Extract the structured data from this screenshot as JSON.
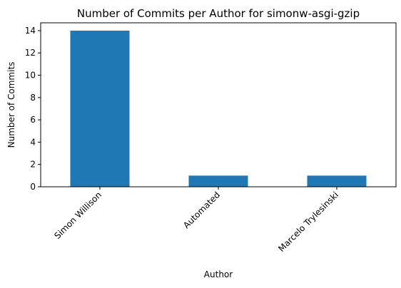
{
  "chart_data": {
    "type": "bar",
    "title": "Number of Commits per Author for simonw-asgi-gzip",
    "xlabel": "Author",
    "ylabel": "Number of Commits",
    "categories": [
      "Simon Willison",
      "Automated",
      "Marcelo Trylesinski"
    ],
    "values": [
      14,
      1,
      1
    ],
    "ylim": [
      0,
      14.7
    ],
    "yticks": [
      0,
      2,
      4,
      6,
      8,
      10,
      12,
      14
    ],
    "bar_color": "#1f77b4",
    "grid": false,
    "legend": "none"
  }
}
